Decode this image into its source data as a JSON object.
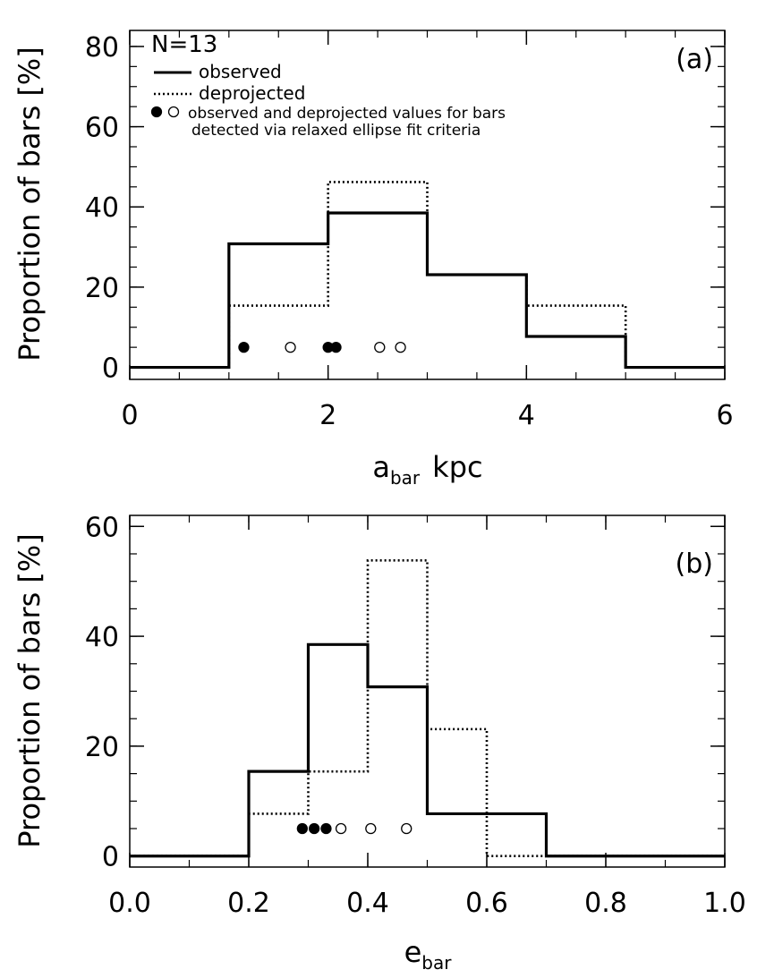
{
  "chart_data": [
    {
      "type": "histogram",
      "panel_label": "(a)",
      "xlabel": "a",
      "xlabel_sub": "bar",
      "xlabel_unit": "kpc",
      "ylabel": "Proportion of bars",
      "ylabel_unit": "[%]",
      "xlim": [
        0,
        6
      ],
      "ylim": [
        -3,
        84
      ],
      "xticks": [
        0,
        2,
        4,
        6
      ],
      "yticks": [
        0,
        20,
        40,
        60,
        80
      ],
      "minor_xtick_step": 0.5,
      "minor_ytick_step": 5,
      "legend": {
        "count_text": "N=13",
        "observed_label": "observed",
        "deprojected_label": "deprojected",
        "relaxed_label_line1": "observed and deprojected values for bars",
        "relaxed_label_line2": "detected via relaxed ellipse fit criteria"
      },
      "bin_edges": [
        0,
        1,
        2,
        3,
        4,
        5,
        6
      ],
      "series": [
        {
          "name": "observed",
          "style": "solid",
          "values": [
            0,
            30.8,
            38.5,
            23.1,
            7.7,
            0
          ]
        },
        {
          "name": "deprojected",
          "style": "dotted",
          "values": [
            0,
            15.4,
            46.2,
            23.1,
            15.4,
            0
          ]
        }
      ],
      "points": {
        "y": 5,
        "filled_x": [
          1.15,
          2.0,
          2.08
        ],
        "open_x": [
          1.62,
          2.52,
          2.73
        ]
      }
    },
    {
      "type": "histogram",
      "panel_label": "(b)",
      "xlabel": "e",
      "xlabel_sub": "bar",
      "xlabel_unit": "",
      "ylabel": "Proportion of bars",
      "ylabel_unit": "[%]",
      "xlim": [
        0.0,
        1.0
      ],
      "ylim": [
        -2,
        62
      ],
      "xticks": [
        0.0,
        0.2,
        0.4,
        0.6,
        0.8,
        1.0
      ],
      "xtick_labels": [
        "0.0",
        "0.2",
        "0.4",
        "0.6",
        "0.8",
        "1.0"
      ],
      "yticks": [
        0,
        20,
        40,
        60
      ],
      "minor_xtick_step": 0.1,
      "minor_ytick_step": 5,
      "bin_edges": [
        0.0,
        0.1,
        0.2,
        0.3,
        0.4,
        0.5,
        0.6,
        0.7,
        0.8,
        0.9,
        1.0
      ],
      "series": [
        {
          "name": "observed",
          "style": "solid",
          "values": [
            0,
            0,
            15.4,
            38.5,
            30.8,
            7.7,
            7.7,
            0,
            0,
            0
          ]
        },
        {
          "name": "deprojected",
          "style": "dotted",
          "values": [
            0,
            0,
            7.7,
            15.4,
            53.8,
            23.1,
            0,
            0,
            0,
            0
          ]
        }
      ],
      "points": {
        "y": 5,
        "filled_x": [
          0.29,
          0.31,
          0.33
        ],
        "open_x": [
          0.355,
          0.405,
          0.465
        ]
      }
    }
  ]
}
